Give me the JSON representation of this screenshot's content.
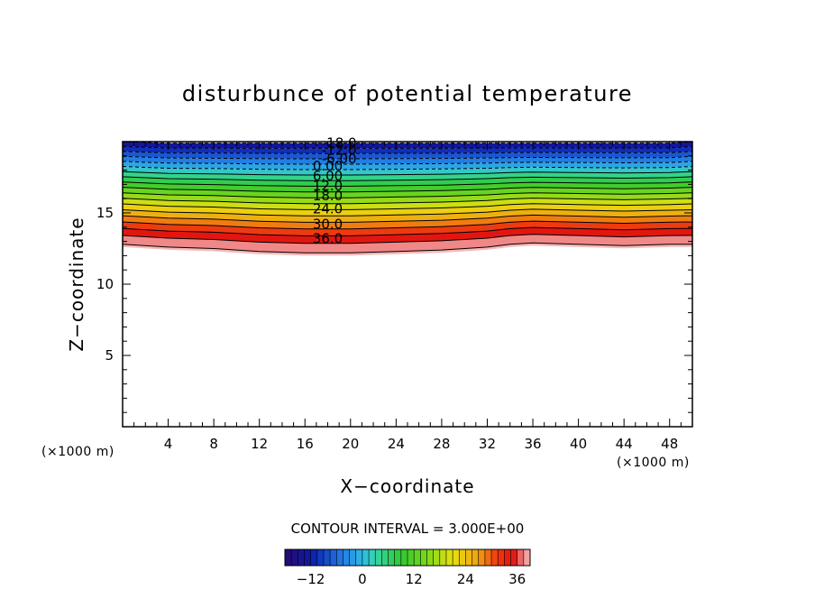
{
  "chart_data": {
    "type": "contour",
    "title": "disturbunce of potential temperature",
    "xlabel": "X−coordinate",
    "ylabel": "Z−coordinate",
    "x_unit": "(×1000 m)",
    "y_unit": "(×1000 m)",
    "xlim": [
      0,
      50
    ],
    "ylim": [
      0,
      20
    ],
    "x_ticks": [
      4,
      8,
      12,
      16,
      20,
      24,
      28,
      32,
      36,
      40,
      44,
      48
    ],
    "y_ticks": [
      5,
      10,
      15
    ],
    "contour_interval_label": "CONTOUR INTERVAL = 3.000E+00",
    "contour_interval": 3,
    "value_range": [
      -18,
      36
    ],
    "contour_labels": [
      {
        "text": "-18.0",
        "value": -18,
        "x": 19,
        "z": 19.9
      },
      {
        "text": "-12.0",
        "value": -12,
        "x": 19,
        "z": 19.4
      },
      {
        "text": "-6.00",
        "value": -6,
        "x": 19,
        "z": 18.8
      },
      {
        "text": "0.00",
        "value": 0,
        "x": 18,
        "z": 18.3
      },
      {
        "text": "6.00",
        "value": 6,
        "x": 18,
        "z": 17.6
      },
      {
        "text": "12.0",
        "value": 12,
        "x": 18,
        "z": 16.9
      },
      {
        "text": "18.0",
        "value": 18,
        "x": 18,
        "z": 16.2
      },
      {
        "text": "24.0",
        "value": 24,
        "x": 18,
        "z": 15.3
      },
      {
        "text": "30.0",
        "value": 30,
        "x": 18,
        "z": 14.2
      },
      {
        "text": "36.0",
        "value": 36,
        "x": 18,
        "z": 13.2
      }
    ],
    "boundary_36": {
      "x": [
        0,
        4,
        8,
        12,
        16,
        20,
        24,
        28,
        32,
        34,
        36,
        40,
        44,
        48,
        50
      ],
      "z": [
        12.8,
        12.6,
        12.5,
        12.3,
        12.2,
        12.2,
        12.3,
        12.4,
        12.6,
        12.8,
        12.9,
        12.8,
        12.7,
        12.8,
        12.8
      ]
    },
    "top_z": [
      20.0,
      19.9,
      19.9,
      19.9,
      19.9,
      19.9,
      19.9,
      19.9,
      19.9,
      19.9,
      19.9,
      19.9,
      19.9,
      19.9,
      20.0
    ],
    "colorbar": {
      "tick_labels": [
        "−12",
        "0",
        "12",
        "24",
        "36"
      ],
      "tick_values": [
        -12,
        0,
        12,
        24,
        36
      ],
      "range": [
        -18,
        39
      ],
      "colors": [
        "#2a0a6e",
        "#0b1aa8",
        "#1e6be0",
        "#2fb8e8",
        "#34d6a8",
        "#30c832",
        "#7ad81a",
        "#e8e010",
        "#f0a010",
        "#f04010",
        "#e01010",
        "#f4a0a0"
      ]
    }
  }
}
